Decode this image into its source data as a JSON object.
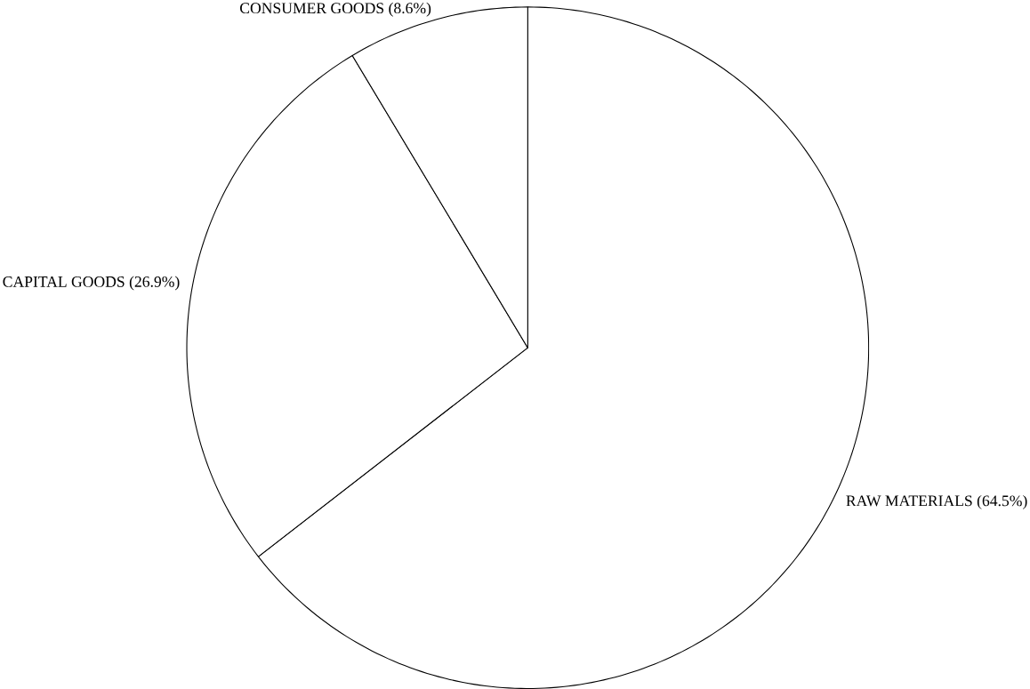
{
  "chart_data": {
    "type": "pie",
    "categories": [
      "RAW MATERIALS",
      "CAPITAL GOODS",
      "CONSUMER GOODS"
    ],
    "values": [
      64.5,
      26.9,
      8.6
    ],
    "value_labels": [
      "(64.5%)",
      "(26.9%)",
      "(8.6%)"
    ],
    "colors": [
      "#ffffff",
      "#ffffff",
      "#ffffff"
    ]
  }
}
